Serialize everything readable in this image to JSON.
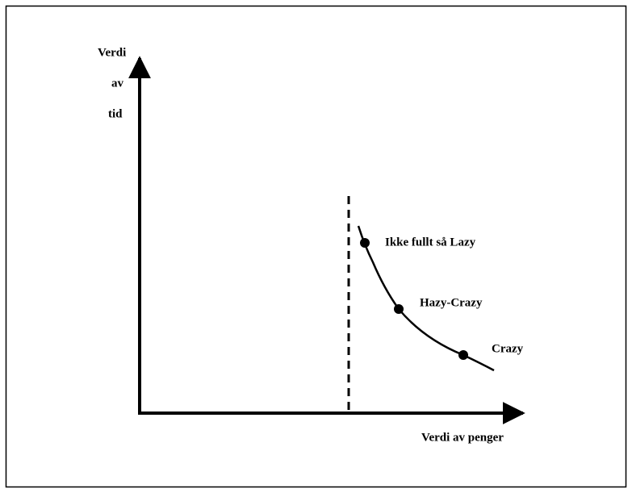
{
  "y_axis": {
    "label_lines": [
      "Verdi",
      "av",
      "tid"
    ]
  },
  "x_axis": {
    "label": "Verdi av penger"
  },
  "points": [
    {
      "label": "Ikke fullt så Lazy"
    },
    {
      "label": "Hazy-Crazy"
    },
    {
      "label": "Crazy"
    }
  ]
}
